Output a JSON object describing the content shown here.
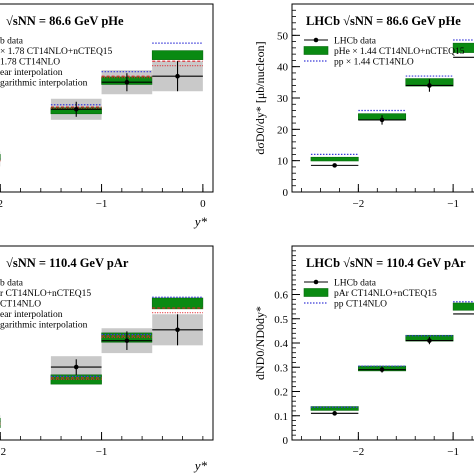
{
  "chart_data": [
    {
      "type": "bar",
      "panel": "top-left",
      "title": "√sNN = 86.6 GeV pHe",
      "xlabel": "y*",
      "ylabel": "",
      "xlim": [
        -2.2,
        0.1
      ],
      "ylim": [
        0,
        1.25
      ],
      "xticks": [
        "2",
        "−1",
        "0"
      ],
      "xtick_values": [
        -2,
        -1,
        0
      ],
      "legend_placement": "top-left",
      "legend": [
        "b data",
        "× 1.78   CT14NLO+nCTEQ15",
        "1.78   CT14NLO",
        "ear interpolation",
        "garithmic interpolation"
      ],
      "bins": [
        {
          "x0": -2.5,
          "x1": -2.0,
          "data": 0.22,
          "data_err": 0.03,
          "green": 0.23,
          "green_err": 0.02,
          "blue": 0.245,
          "red_lin": 0.21,
          "red_log": 0.205,
          "gray_err": 0.05
        },
        {
          "x0": -1.5,
          "x1": -1.0,
          "data": 0.55,
          "data_err": 0.05,
          "green": 0.54,
          "green_err": 0.02,
          "blue": 0.58,
          "red_lin": 0.565,
          "red_log": 0.555,
          "gray_err": 0.07
        },
        {
          "x0": -1.0,
          "x1": -0.5,
          "data": 0.73,
          "data_err": 0.06,
          "green": 0.74,
          "green_err": 0.025,
          "blue": 0.8,
          "red_lin": 0.77,
          "red_log": 0.76,
          "gray_err": 0.08
        },
        {
          "x0": -0.5,
          "x1": 0.0,
          "data": 0.77,
          "data_err": 0.1,
          "green": 0.91,
          "green_err": 0.03,
          "blue": 0.99,
          "red_lin": 0.87,
          "red_log": 0.84,
          "gray_err": 0.1
        }
      ]
    },
    {
      "type": "bar",
      "panel": "top-right",
      "title": "LHCb √sNN = 86.6 GeV pHe",
      "xlabel": "",
      "ylabel": "dσD0/dy* [μb/nucleon]",
      "xlim": [
        -2.7,
        -0.4
      ],
      "ylim": [
        0,
        60
      ],
      "yticks": [
        "0",
        "10",
        "20",
        "30",
        "40",
        "50"
      ],
      "ytick_values": [
        0,
        10,
        20,
        30,
        40,
        50
      ],
      "xticks": [
        "−2",
        "−1"
      ],
      "xtick_values": [
        -2,
        -1
      ],
      "legend_placement": "top-left",
      "legend": [
        "LHCb data",
        "pHe × 1.44   CT14NLO+nCTEQ15",
        "pp × 1.44   CT14NLO"
      ],
      "bins": [
        {
          "x0": -2.5,
          "x1": -2.0,
          "data": 8.5,
          "data_err": 0.6,
          "green": 10.5,
          "green_err": 0.6,
          "blue": 12.0
        },
        {
          "x0": -2.0,
          "x1": -1.5,
          "data": 23.0,
          "data_err": 1.5,
          "green": 24.0,
          "green_err": 1.0,
          "blue": 26.0
        },
        {
          "x0": -1.5,
          "x1": -1.0,
          "data": 34.0,
          "data_err": 2.0,
          "green": 35.0,
          "green_err": 1.2,
          "blue": 37.0
        },
        {
          "x0": -1.0,
          "x1": -0.5,
          "data": 43.0,
          "data_err": 3.0,
          "green": 46.0,
          "green_err": 1.5,
          "blue": 48.5
        }
      ]
    },
    {
      "type": "bar",
      "panel": "bottom-left",
      "title": "√sNN = 110.4 GeV pAr",
      "xlabel": "y*",
      "ylabel": "",
      "xlim": [
        -2.2,
        0.1
      ],
      "ylim": [
        0,
        1.25
      ],
      "xticks": [
        "−2",
        "−1"
      ],
      "xtick_values": [
        -2,
        -1
      ],
      "legend_placement": "top-left",
      "legend": [
        "b data",
        "r   CT14NLO+nCTEQ15",
        "CT14NLO",
        "ear interpolation",
        "garithmic interpolation"
      ],
      "bins": [
        {
          "x0": -2.5,
          "x1": -2.0,
          "data": 0.12,
          "data_err": 0.02,
          "green": 0.11,
          "green_err": 0.03,
          "blue": 0.12,
          "red_lin": 0.11,
          "red_log": 0.1,
          "gray_err": 0.04
        },
        {
          "x0": -1.5,
          "x1": -1.0,
          "data": 0.47,
          "data_err": 0.05,
          "green": 0.39,
          "green_err": 0.03,
          "blue": 0.41,
          "red_lin": 0.4,
          "red_log": 0.39,
          "gray_err": 0.07
        },
        {
          "x0": -1.0,
          "x1": -0.5,
          "data": 0.64,
          "data_err": 0.06,
          "green": 0.66,
          "green_err": 0.03,
          "blue": 0.68,
          "red_lin": 0.67,
          "red_log": 0.66,
          "gray_err": 0.08
        },
        {
          "x0": -0.5,
          "x1": 0.0,
          "data": 0.71,
          "data_err": 0.1,
          "green": 0.88,
          "green_err": 0.035,
          "blue": 0.92,
          "red_lin": 0.85,
          "red_log": 0.82,
          "gray_err": 0.1
        }
      ]
    },
    {
      "type": "bar",
      "panel": "bottom-right",
      "title": "LHCb √sNN = 110.4 GeV pAr",
      "xlabel": "",
      "ylabel": "dND0/ND0dy*",
      "xlim": [
        -2.7,
        -0.4
      ],
      "ylim": [
        0,
        0.8
      ],
      "yticks": [
        "0",
        "0.1",
        "0.2",
        "0.3",
        "0.4",
        "0.5",
        "0.6"
      ],
      "ytick_values": [
        0,
        0.1,
        0.2,
        0.3,
        0.4,
        0.5,
        0.6
      ],
      "xticks": [
        "−2",
        "−1"
      ],
      "xtick_values": [
        -2,
        -1
      ],
      "legend_placement": "top-left",
      "legend": [
        "LHCb data",
        "pAr   CT14NLO+nCTEQ15",
        "pp   CT14NLO"
      ],
      "bins": [
        {
          "x0": -2.5,
          "x1": -2.0,
          "data": 0.11,
          "data_err": 0.008,
          "green": 0.13,
          "green_err": 0.008,
          "blue": 0.135
        },
        {
          "x0": -2.0,
          "x1": -1.5,
          "data": 0.29,
          "data_err": 0.012,
          "green": 0.295,
          "green_err": 0.01,
          "blue": 0.305
        },
        {
          "x0": -1.5,
          "x1": -1.0,
          "data": 0.41,
          "data_err": 0.015,
          "green": 0.42,
          "green_err": 0.012,
          "blue": 0.43
        },
        {
          "x0": -1.0,
          "x1": -0.5,
          "data": 0.52,
          "data_err": 0.02,
          "green": 0.55,
          "green_err": 0.015,
          "blue": 0.57
        }
      ]
    }
  ],
  "colors": {
    "green_band": "#0a8a12",
    "green_edge": "#066b0c",
    "blue_line": "#3a3ad8",
    "red_line": "#e0242a",
    "gray_band": "#c9c9c9",
    "data_point": "#000000"
  }
}
